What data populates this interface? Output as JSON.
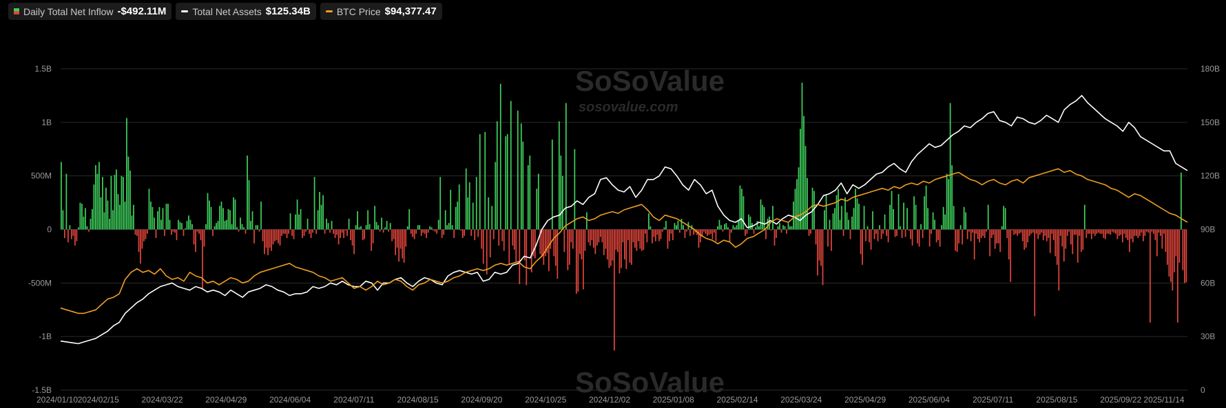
{
  "legend": {
    "inflow": {
      "label": "Daily Total Net Inflow",
      "value": "-$492.11M",
      "color": "#3ecf5b"
    },
    "assets": {
      "label": "Total Net Assets",
      "value": "$125.34B",
      "color": "#ffffff"
    },
    "btc": {
      "label": "BTC Price",
      "value": "$94,377.47",
      "color": "#f0a020"
    }
  },
  "watermark": {
    "brand": "SoSoValue",
    "url": "sosovalue.com"
  },
  "chart_data": {
    "type": "bar+line",
    "x_ticks": [
      "2024/01/10",
      "2024/02/15",
      "2024/03/22",
      "2024/04/29",
      "2024/06/04",
      "2024/07/11",
      "2024/08/15",
      "2024/09/20",
      "2024/10/25",
      "2024/12/02",
      "2025/01/08",
      "2025/02/14",
      "2025/03/24",
      "2025/04/29",
      "2025/06/04",
      "2025/07/11",
      "2025/08/15",
      "2025/09/22",
      "2025/11/14"
    ],
    "y_left": {
      "ticks": [
        "1.5B",
        "1B",
        "500M",
        "0",
        "-500M",
        "-1B",
        "-1.5B"
      ],
      "range_millions": [
        -1500,
        1500
      ]
    },
    "y_right": {
      "ticks": [
        "180B",
        "150B",
        "120B",
        "90B",
        "60B",
        "30B",
        "0"
      ],
      "range_billions": [
        0,
        180
      ]
    },
    "bar_series": {
      "name": "Daily Total Net Inflow",
      "unit": "USD millions",
      "positive_color": "#3ecf5b",
      "negative_color": "#e0453b",
      "values": [
        630,
        180,
        -80,
        520,
        -120,
        40,
        -90,
        -60,
        -150,
        -110,
        20,
        250,
        240,
        120,
        200,
        30,
        -20,
        100,
        190,
        420,
        600,
        520,
        630,
        300,
        490,
        160,
        390,
        270,
        100,
        500,
        180,
        510,
        560,
        330,
        230,
        500,
        490,
        260,
        1040,
        680,
        550,
        130,
        230,
        -50,
        -60,
        -210,
        -320,
        -180,
        -110,
        -90,
        -40,
        380,
        260,
        210,
        110,
        -80,
        170,
        210,
        90,
        200,
        -60,
        240,
        240,
        90,
        -50,
        -20,
        -30,
        -100,
        90,
        70,
        60,
        -60,
        10,
        80,
        130,
        90,
        50,
        -140,
        -210,
        -20,
        -40,
        -100,
        -560,
        -160,
        50,
        340,
        270,
        210,
        -60,
        30,
        60,
        80,
        220,
        260,
        200,
        80,
        90,
        190,
        180,
        50,
        300,
        280,
        20,
        -20,
        110,
        50,
        20,
        -40,
        690,
        460,
        80,
        170,
        -130,
        40,
        40,
        -20,
        260,
        -110,
        -230,
        -170,
        -240,
        -170,
        -200,
        -140,
        -110,
        -100,
        -130,
        -150,
        -60,
        -40,
        -40,
        -80,
        -40,
        150,
        -60,
        -90,
        140,
        280,
        140,
        190,
        -80,
        -60,
        -20,
        100,
        -40,
        -80,
        -30,
        490,
        -40,
        180,
        350,
        230,
        320,
        -40,
        100,
        60,
        -30,
        80,
        -40,
        -80,
        -50,
        -140,
        -80,
        -30,
        -80,
        -10,
        -60,
        100,
        -100,
        -150,
        -230,
        40,
        170,
        20,
        30,
        -100,
        -90,
        40,
        180,
        50,
        -200,
        -130,
        220,
        70,
        40,
        -20,
        110,
        -30,
        20,
        80,
        -20,
        60,
        -110,
        -90,
        -240,
        -170,
        -300,
        -180,
        -270,
        -310,
        -160,
        30,
        190,
        -40,
        -70,
        -90,
        -40,
        40,
        40,
        -60,
        -30,
        -40,
        -80,
        -30,
        30,
        20,
        -10,
        -20,
        -40,
        90,
        490,
        -80,
        -50,
        180,
        40,
        60,
        370,
        40,
        -80,
        210,
        260,
        420,
        -10,
        -80,
        -60,
        570,
        300,
        440,
        -60,
        250,
        -100,
        490,
        -70,
        890,
        -180,
        -320,
        910,
        -420,
        300,
        -260,
        220,
        -90,
        630,
        1010,
        -150,
        1360,
        -110,
        -200,
        870,
        890,
        -330,
        1200,
        -150,
        -190,
        -300,
        1110,
        -510,
        990,
        820,
        -290,
        -520,
        600,
        690,
        -400,
        -250,
        -270,
        380,
        520,
        -230,
        -250,
        -330,
        -250,
        -220,
        -390,
        -180,
        840,
        -250,
        -340,
        -460,
        1010,
        690,
        500,
        -210,
        1180,
        -380,
        -330,
        -120,
        -180,
        750,
        -600,
        -580,
        -230,
        -280,
        -560,
        -200,
        160,
        -120,
        -150,
        -100,
        -170,
        -230,
        -150,
        -120,
        -70,
        -120,
        -240,
        -180,
        -280,
        -360,
        -340,
        -290,
        -1130,
        -190,
        -210,
        -410,
        -360,
        -120,
        -280,
        -370,
        -100,
        -310,
        -330,
        -120,
        -170,
        -200,
        -110,
        -180,
        -200,
        -190,
        -40,
        -120,
        150,
        30,
        -130,
        -70,
        -110,
        -50,
        -110,
        -90,
        -20,
        20,
        80,
        -180,
        -110,
        -40,
        -100,
        60,
        40,
        80,
        -30,
        100,
        40,
        -80,
        -20,
        70,
        -60,
        40,
        -50,
        -30,
        -50,
        -170,
        -120,
        -70,
        -20,
        -40,
        -60,
        -50,
        -40,
        -90,
        -30,
        -110,
        30,
        90,
        40,
        -20,
        50,
        60,
        20,
        -120,
        -30,
        40,
        20,
        40,
        80,
        410,
        380,
        310,
        -60,
        -40,
        140,
        120,
        60,
        -40,
        20,
        80,
        30,
        280,
        230,
        210,
        -90,
        100,
        120,
        -10,
        220,
        -150,
        -80,
        30,
        60,
        -30,
        40,
        30,
        -40,
        60,
        30,
        30,
        260,
        380,
        470,
        580,
        940,
        1370,
        1060,
        780,
        480,
        -60,
        -40,
        390,
        360,
        -140,
        -430,
        -290,
        -340,
        -520,
        180,
        320,
        -160,
        90,
        -200,
        150,
        200,
        320,
        380,
        90,
        220,
        -60,
        300,
        160,
        90,
        -90,
        120,
        200,
        380,
        290,
        240,
        -230,
        -330,
        220,
        -110,
        30,
        -120,
        -190,
        170,
        -90,
        -40,
        -110,
        40,
        -90,
        -40,
        140,
        -60,
        -120,
        230,
        360,
        190,
        -70,
        -60,
        330,
        30,
        -80,
        250,
        -70,
        200,
        -10,
        -90,
        -150,
        310,
        230,
        -130,
        -160,
        50,
        -80,
        310,
        410,
        200,
        -160,
        -40,
        160,
        90,
        -120,
        -100,
        -160,
        40,
        210,
        140,
        520,
        470,
        1180,
        600,
        220,
        -200,
        -210,
        -130,
        40,
        -140,
        210,
        160,
        -90,
        -20,
        -110,
        -30,
        -280,
        -40,
        -90,
        -120,
        -80,
        -60,
        -80,
        -20,
        230,
        -250,
        -80,
        -50,
        -180,
        -130,
        -130,
        -210,
        30,
        220,
        200,
        -80,
        -280,
        -490,
        -10,
        -50,
        -40,
        -60,
        -40,
        -30,
        -110,
        -190,
        -170,
        -120,
        -60,
        -40,
        -30,
        -810,
        -40,
        -90,
        -50,
        -30,
        -100,
        -60,
        -110,
        -80,
        -220,
        -40,
        -100,
        -250,
        -330,
        -570,
        -60,
        -160,
        -300,
        -180,
        -60,
        -20,
        -140,
        -230,
        -50,
        -50,
        -310,
        -60,
        -210,
        -190,
        230,
        -80,
        -40,
        -40,
        -90,
        -40,
        -60,
        -40,
        -30,
        -40,
        -40,
        -80,
        -90,
        -40,
        -40,
        -50,
        -20,
        -30,
        -40,
        -90,
        -60,
        -50,
        -120,
        -40,
        -80,
        -100,
        -210,
        -90,
        -120,
        -60,
        -60,
        -80,
        -60,
        -30,
        -110,
        -60,
        -20,
        -30,
        -870,
        -20,
        -40,
        -100,
        -250,
        -30,
        -60,
        -180,
        -40,
        -210,
        -330,
        -440,
        -490,
        -570,
        -400,
        -250,
        -870,
        -310,
        530,
        -380,
        -500,
        -492
      ]
    },
    "line_series": [
      {
        "name": "Total Net Assets",
        "unit": "USD billions",
        "color": "#ffffff",
        "values": [
          27.5,
          27,
          26.5,
          26,
          27,
          28,
          29,
          31,
          33,
          36,
          38,
          43,
          46,
          49,
          51,
          54,
          56,
          58,
          59,
          60,
          58,
          57,
          56,
          58,
          57,
          55,
          56,
          55,
          53,
          56,
          54,
          52,
          55,
          56,
          57,
          59,
          58,
          56,
          55,
          53,
          54,
          54,
          55,
          58,
          57,
          58,
          60,
          59,
          61,
          59,
          58,
          58,
          61,
          60,
          56,
          60,
          60,
          62,
          63,
          60,
          58,
          61,
          63,
          62,
          60,
          59,
          64,
          66,
          67,
          66,
          65,
          66,
          61,
          62,
          66,
          65,
          66,
          70,
          71,
          75,
          74,
          81,
          90,
          95,
          97,
          98,
          102,
          103,
          106,
          104,
          108,
          110,
          118,
          119,
          115,
          112,
          111,
          114,
          108,
          112,
          118,
          118,
          120,
          125,
          124,
          120,
          115,
          112,
          118,
          115,
          110,
          112,
          103,
          98,
          95,
          94,
          96,
          91,
          92,
          94,
          93,
          95,
          93,
          96,
          98,
          97,
          95,
          98,
          100,
          104,
          109,
          110,
          112,
          116,
          110,
          115,
          113,
          115,
          118,
          121,
          122,
          125,
          127,
          124,
          122,
          128,
          132,
          135,
          138,
          136,
          137,
          140,
          143,
          145,
          148,
          147,
          150,
          152,
          155,
          156,
          151,
          150,
          148,
          153,
          152,
          150,
          149,
          151,
          154,
          152,
          150,
          157,
          160,
          162,
          165,
          161,
          158,
          155,
          152,
          150,
          148,
          145,
          150,
          147,
          142,
          140,
          138,
          136,
          134,
          134,
          127,
          125,
          123
        ]
      },
      {
        "name": "BTC Price",
        "unit": "thousand USD",
        "color": "#f0a020",
        "values": [
          46,
          45,
          44,
          43,
          43,
          44,
          45,
          48,
          51,
          52,
          54,
          62,
          66,
          68,
          66,
          67,
          65,
          68,
          64,
          62,
          63,
          61,
          66,
          64,
          63,
          60,
          61,
          59,
          61,
          63,
          62,
          60,
          61,
          64,
          66,
          67,
          68,
          69,
          70,
          71,
          69,
          68,
          67,
          66,
          64,
          63,
          61,
          62,
          63,
          60,
          57,
          58,
          56,
          58,
          61,
          59,
          60,
          62,
          61,
          58,
          56,
          59,
          60,
          62,
          61,
          60,
          61,
          63,
          64,
          66,
          67,
          68,
          67,
          68,
          70,
          71,
          70,
          71,
          72,
          69,
          68,
          72,
          75,
          80,
          85,
          88,
          92,
          94,
          96,
          97,
          95,
          96,
          98,
          99,
          100,
          99,
          101,
          102,
          103,
          104,
          101,
          97,
          95,
          98,
          97,
          96,
          94,
          92,
          90,
          87,
          85,
          84,
          82,
          84,
          83,
          80,
          82,
          85,
          86,
          88,
          90,
          94,
          96,
          95,
          94,
          97,
          98,
          100,
          103,
          104,
          103,
          104,
          105,
          107,
          106,
          108,
          109,
          110,
          111,
          112,
          113,
          112,
          114,
          113,
          115,
          116,
          115,
          117,
          116,
          118,
          119,
          120,
          121,
          122,
          120,
          118,
          117,
          115,
          117,
          118,
          116,
          115,
          117,
          118,
          116,
          119,
          120,
          121,
          122,
          123,
          124,
          122,
          123,
          121,
          120,
          118,
          117,
          116,
          115,
          113,
          112,
          110,
          108,
          110,
          109,
          107,
          105,
          103,
          101,
          99,
          98,
          96,
          94
        ]
      }
    ]
  }
}
